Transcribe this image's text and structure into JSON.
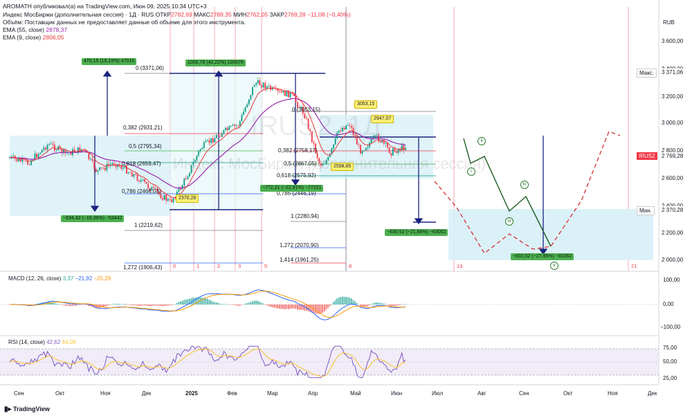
{
  "header": {
    "line1": "AROMATH опубликовал(а) на TradingView.com, Июн 09, 2025 10:34 UTC+3",
    "title": "Индекс МосБиржи (дополнительная сессия) · 1Д · RUS",
    "otkr_label": "ОТКР",
    "otkr": "2782,69",
    "maks_label": "МАКС",
    "maks": "2789,35",
    "min_label": "МИН",
    "min": "2762,05",
    "zakr_label": "ЗАКР",
    "zakr": "2769,28",
    "change": "−11,08 (−0,40%)",
    "volume_note": "Объём: Поставщик данных не предоставляет данные об объеме для этого инструмента.",
    "ema55_label": "EMA (55, close)",
    "ema55": "2878,37",
    "ema9_label": "EMA (9, close)",
    "ema9": "2806,05"
  },
  "currency": "RUB",
  "price_axis": [
    "3 600,00",
    "3 400,00",
    "3 200,00",
    "3 000,00",
    "2 800,00",
    "2 600,00",
    "2 400,00",
    "2 200,00",
    "2 000,00"
  ],
  "price_tags": {
    "max_label": "Макс.",
    "max_value": "3 371,06",
    "symbol": "IRUS2",
    "last": "2 769,28",
    "min_label": "Мин.",
    "min_value": "2 370,28"
  },
  "macd": {
    "label": "MACD (12, 26, close)",
    "v1": "3,37",
    "v2": "−21,92",
    "v3": "−25,29",
    "axis": [
      "100,00",
      "0,00",
      "−100,00"
    ]
  },
  "rsi": {
    "label": "RSI (14, close)",
    "v1": "42,62",
    "v2": "44,09",
    "axis": [
      "75,00",
      "50,00",
      "25,00"
    ]
  },
  "months": [
    "Сен",
    "Окт",
    "Ноя",
    "Дек",
    "2025",
    "Фев",
    "Мар",
    "Апр",
    "Май",
    "Июн",
    "Июл",
    "Авг",
    "Сен",
    "Окт",
    "Ноя",
    "Дек"
  ],
  "watermark": {
    "symbol": "IRUS2, 1Д",
    "name": "Индекс МосБиржи (дополнительная сессия)"
  },
  "measures": {
    "m1": "470,15 (16,19%) 47015",
    "m2": "1000,78 (42,22%) 100078",
    "m3": "−534,42 (−18,36%) −53442",
    "m4": "−772,21 (−22,91%) −77221",
    "m5": "−630,52 (−21,66%) −63052",
    "m6": "−810,52 (−27,85%) −81052"
  },
  "price_labels": {
    "p1": "2370,28",
    "p2": "3053,15",
    "p3": "2947,07",
    "p4": "2598,85"
  },
  "fib1": {
    "l0": "0 (3371,06)",
    "l382": "0,382 (2931,21)",
    "l5": "0,5 (2795,34)",
    "l618": "0,618 (2659,47)",
    "l786": "0,786 (2466,03)",
    "l1": "1 (2219,62)",
    "l1272": "1,272 (1906,43)"
  },
  "fib2": {
    "l0": "0 (3053,15)",
    "l382": "0,382 (2758,17)",
    "l5": "0,5 (2667,05)",
    "l618": "0,618 (2575,92)",
    "l786": "0,786 (2446,19)",
    "l1": "1 (2280,94)",
    "l1272": "1,272 (2070,90)",
    "l1414": "1,414 (1961,25)"
  },
  "fib_time": [
    "0",
    "1",
    "2",
    "3",
    "5",
    "8",
    "13",
    "21"
  ],
  "waves": [
    "i",
    "ii",
    "iii",
    "iv",
    "v"
  ],
  "footer": "TradingView",
  "colors": {
    "up": "#089981",
    "down": "#f23645",
    "ema55": "#9c27b0",
    "ema9": "#e53935",
    "wave": "#2e7d32",
    "zone": "#d7f0f7"
  }
}
